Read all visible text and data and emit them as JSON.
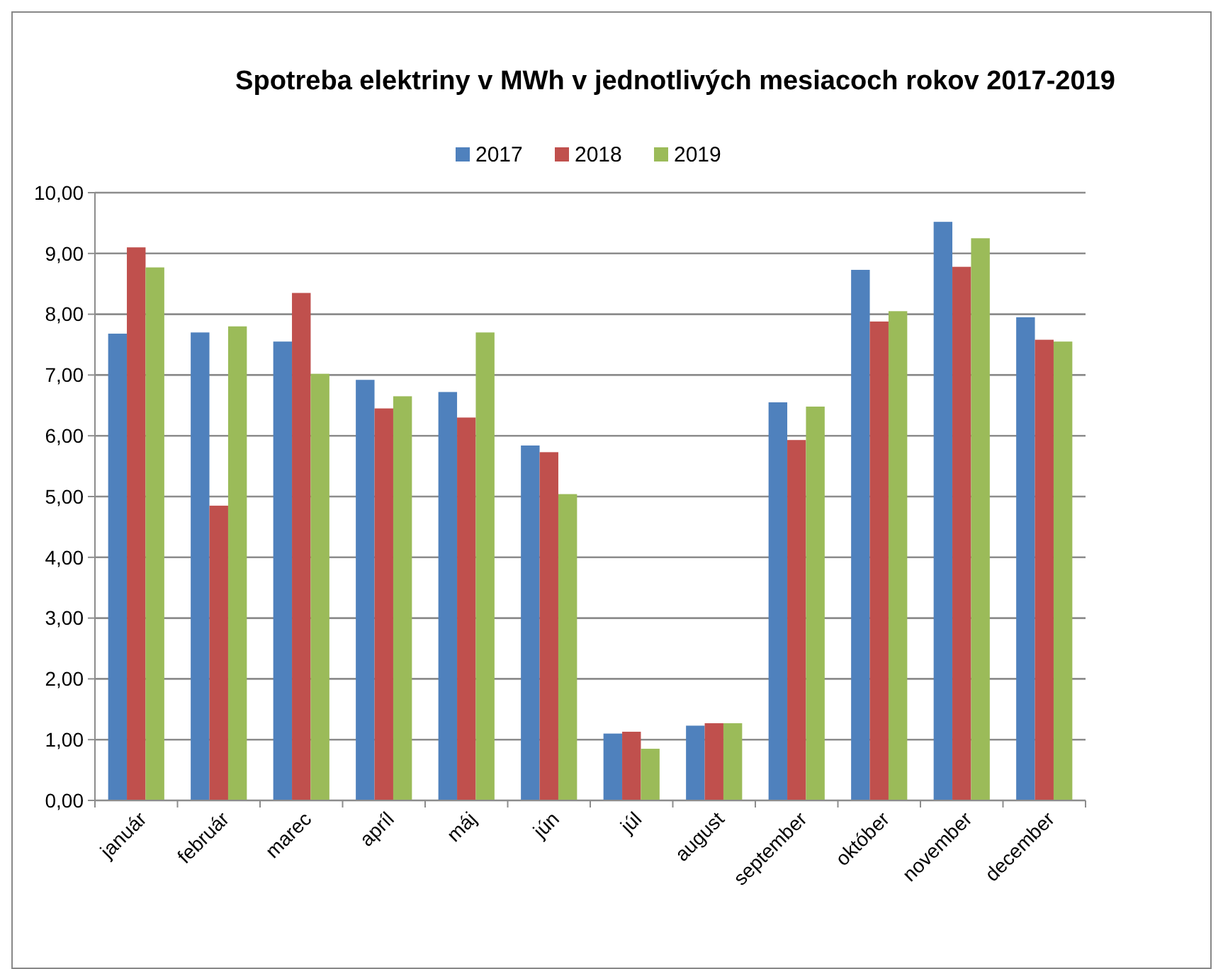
{
  "chart_data": {
    "type": "bar",
    "title": "Spotreba elektriny v MWh v jednotlivých mesiacoch rokov 2017-2019",
    "categories": [
      "január",
      "február",
      "marec",
      "apríl",
      "máj",
      "jún",
      "júl",
      "august",
      "september",
      "október",
      "november",
      "december"
    ],
    "series": [
      {
        "name": "2017",
        "color": "#4f81bd",
        "values": [
          7.68,
          7.7,
          7.55,
          6.92,
          6.72,
          5.84,
          1.1,
          1.23,
          6.55,
          8.73,
          9.52,
          7.95
        ]
      },
      {
        "name": "2018",
        "color": "#c0504d",
        "values": [
          9.1,
          4.85,
          8.35,
          6.45,
          6.3,
          5.73,
          1.13,
          1.27,
          5.93,
          7.88,
          8.78,
          7.58
        ]
      },
      {
        "name": "2019",
        "color": "#9bbb59",
        "values": [
          8.77,
          7.8,
          7.02,
          6.65,
          7.7,
          5.04,
          0.85,
          1.27,
          6.48,
          8.05,
          9.25,
          7.55
        ]
      }
    ],
    "ylim": [
      0,
      10
    ],
    "yticks": [
      {
        "value": 0,
        "label": "0,00"
      },
      {
        "value": 1,
        "label": "1,00"
      },
      {
        "value": 2,
        "label": "2,00"
      },
      {
        "value": 3,
        "label": "3,00"
      },
      {
        "value": 4,
        "label": "4,00"
      },
      {
        "value": 5,
        "label": "5,00"
      },
      {
        "value": 6,
        "label": "6,00"
      },
      {
        "value": 7,
        "label": "7,00"
      },
      {
        "value": 8,
        "label": "8,00"
      },
      {
        "value": 9,
        "label": "9,00"
      },
      {
        "value": 10,
        "label": "10,00"
      }
    ],
    "grid": "y",
    "legend": "top"
  }
}
